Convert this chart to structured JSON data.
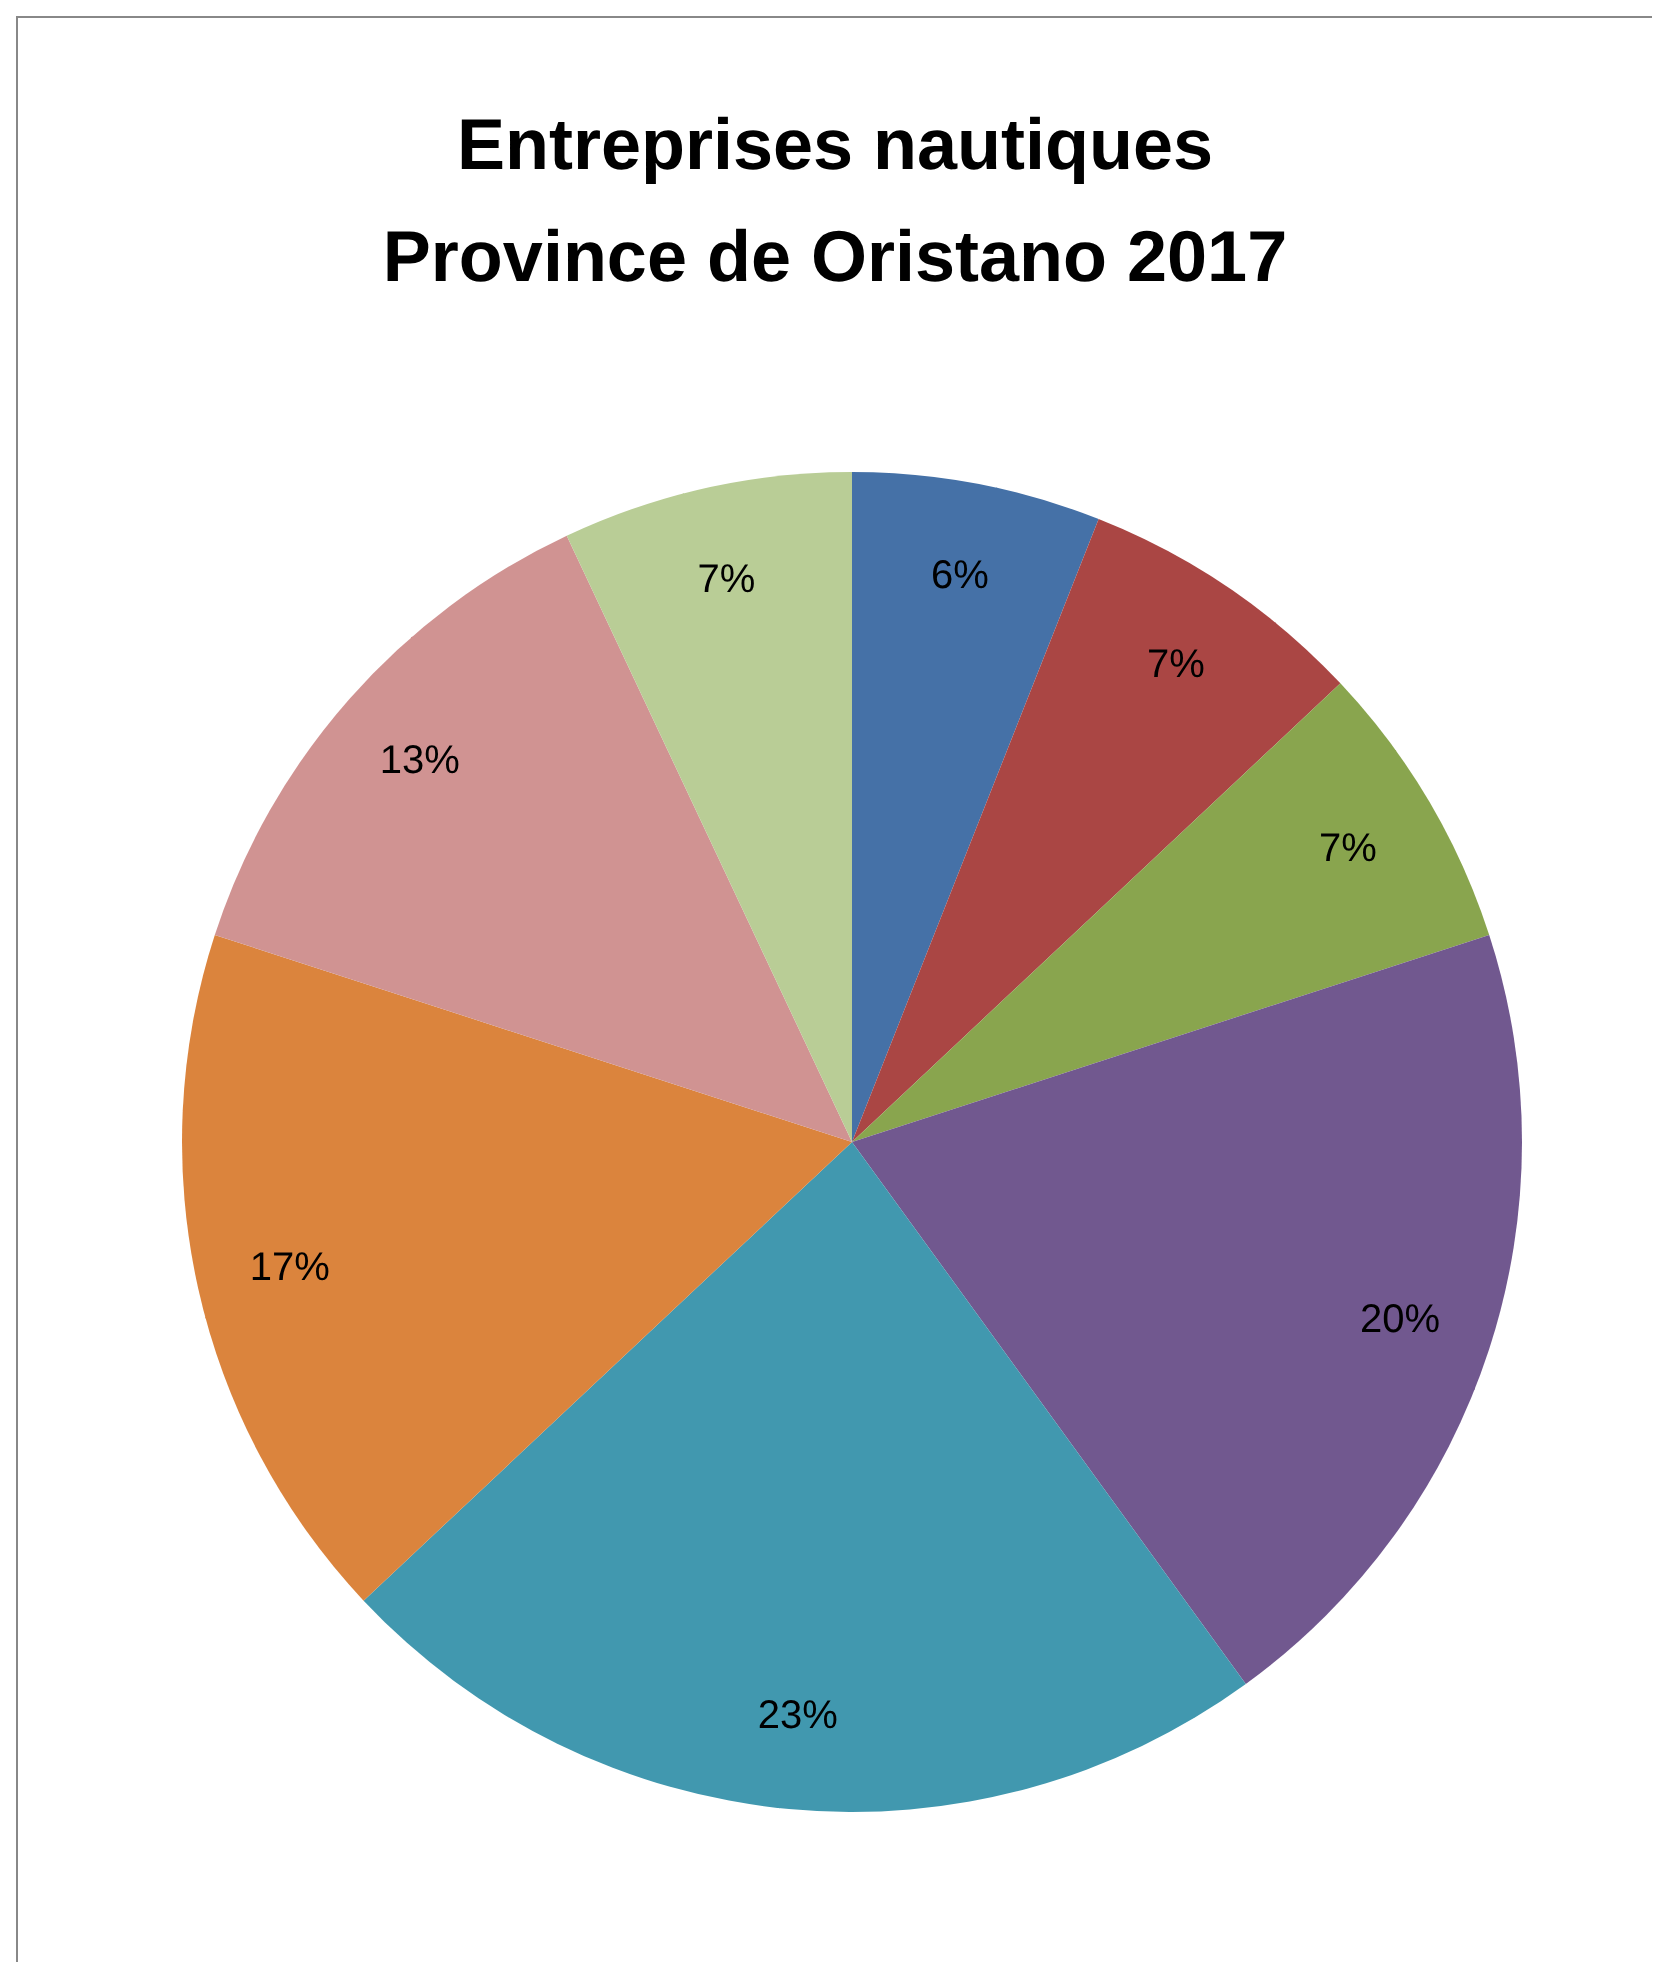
{
  "chart_data": {
    "type": "pie",
    "title": "Entreprises nautiques\nProvince de Oristano 2017",
    "categories": [
      null,
      null,
      null,
      null,
      null,
      null,
      null,
      null
    ],
    "values": [
      6,
      7,
      7,
      20,
      23,
      17,
      13,
      7
    ],
    "colors": [
      "#4571a7",
      "#aa4644",
      "#89a54e",
      "#71588f",
      "#4198af",
      "#db843d",
      "#d09392",
      "#b9cd96"
    ],
    "value_labels": [
      "6%",
      "7%",
      "7%",
      "20%",
      "23%",
      "17%",
      "13%",
      "7%"
    ]
  }
}
